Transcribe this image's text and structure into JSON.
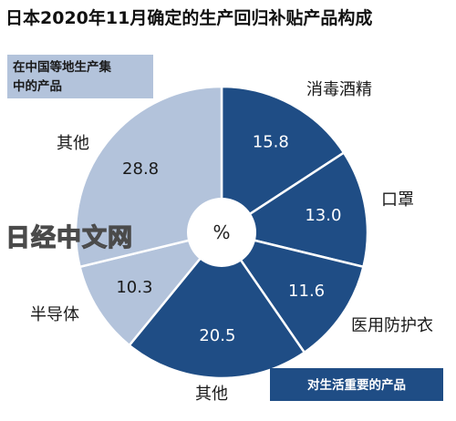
{
  "chart_data": {
    "type": "pie",
    "title": "日本2020年11月确定的生产回归补贴产品构成",
    "center_label": "%",
    "unit": "%",
    "groups": [
      {
        "name": "在中国等地生产集中的产品",
        "color": "#b3c3db"
      },
      {
        "name": "对生活重要的产品",
        "color": "#1f4d85"
      }
    ],
    "slices": [
      {
        "label": "消毒酒精",
        "value": 15.8,
        "group": 1
      },
      {
        "label": "口罩",
        "value": 13.0,
        "group": 1
      },
      {
        "label": "医用防护衣",
        "value": 11.6,
        "group": 1
      },
      {
        "label": "其他",
        "value": 20.5,
        "group": 1
      },
      {
        "label": "半导体",
        "value": 10.3,
        "group": 0
      },
      {
        "label": "其他",
        "value": 28.8,
        "group": 0
      }
    ]
  },
  "watermark": "日经中文网",
  "colors": {
    "dark": "#1f4d85",
    "light": "#b3c3db",
    "divider": "#ffffff"
  }
}
